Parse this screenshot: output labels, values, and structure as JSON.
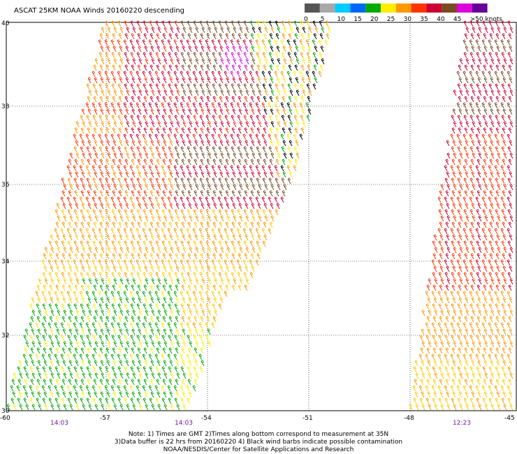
{
  "title": "ASCAT 25KM NOAA Winds 20160220 descending",
  "legend": {
    "labels": [
      "0",
      "5",
      "10",
      "15",
      "20",
      "25",
      "30",
      "35",
      "40",
      "45",
      ">50 knots"
    ],
    "colors": [
      "#555555",
      "#a8a8a8",
      "#00ccff",
      "#0066ff",
      "#00aa00",
      "#ffee00",
      "#ff9900",
      "#ff3300",
      "#cc0033",
      "#7a4a22",
      "#dd00dd",
      "#660099"
    ]
  },
  "axes": {
    "lat_labels": [
      "40",
      "38",
      "36",
      "34",
      "32",
      "30"
    ],
    "lon_labels": [
      "-60",
      "-57",
      "-54",
      "-51",
      "-48",
      "-45"
    ]
  },
  "times": [
    "14:03",
    "14:03",
    "12:23"
  ],
  "notes": {
    "line1": "Note: 1) Times are GMT 2)Times along bottom correspond to measurement at 35N",
    "line2": "3)Data buffer is 22 hrs from 20160220 4) Black wind barbs indicate possible contamination",
    "line3": "NOAA/NESDIS/Center for Satellite Applications and Research"
  }
}
